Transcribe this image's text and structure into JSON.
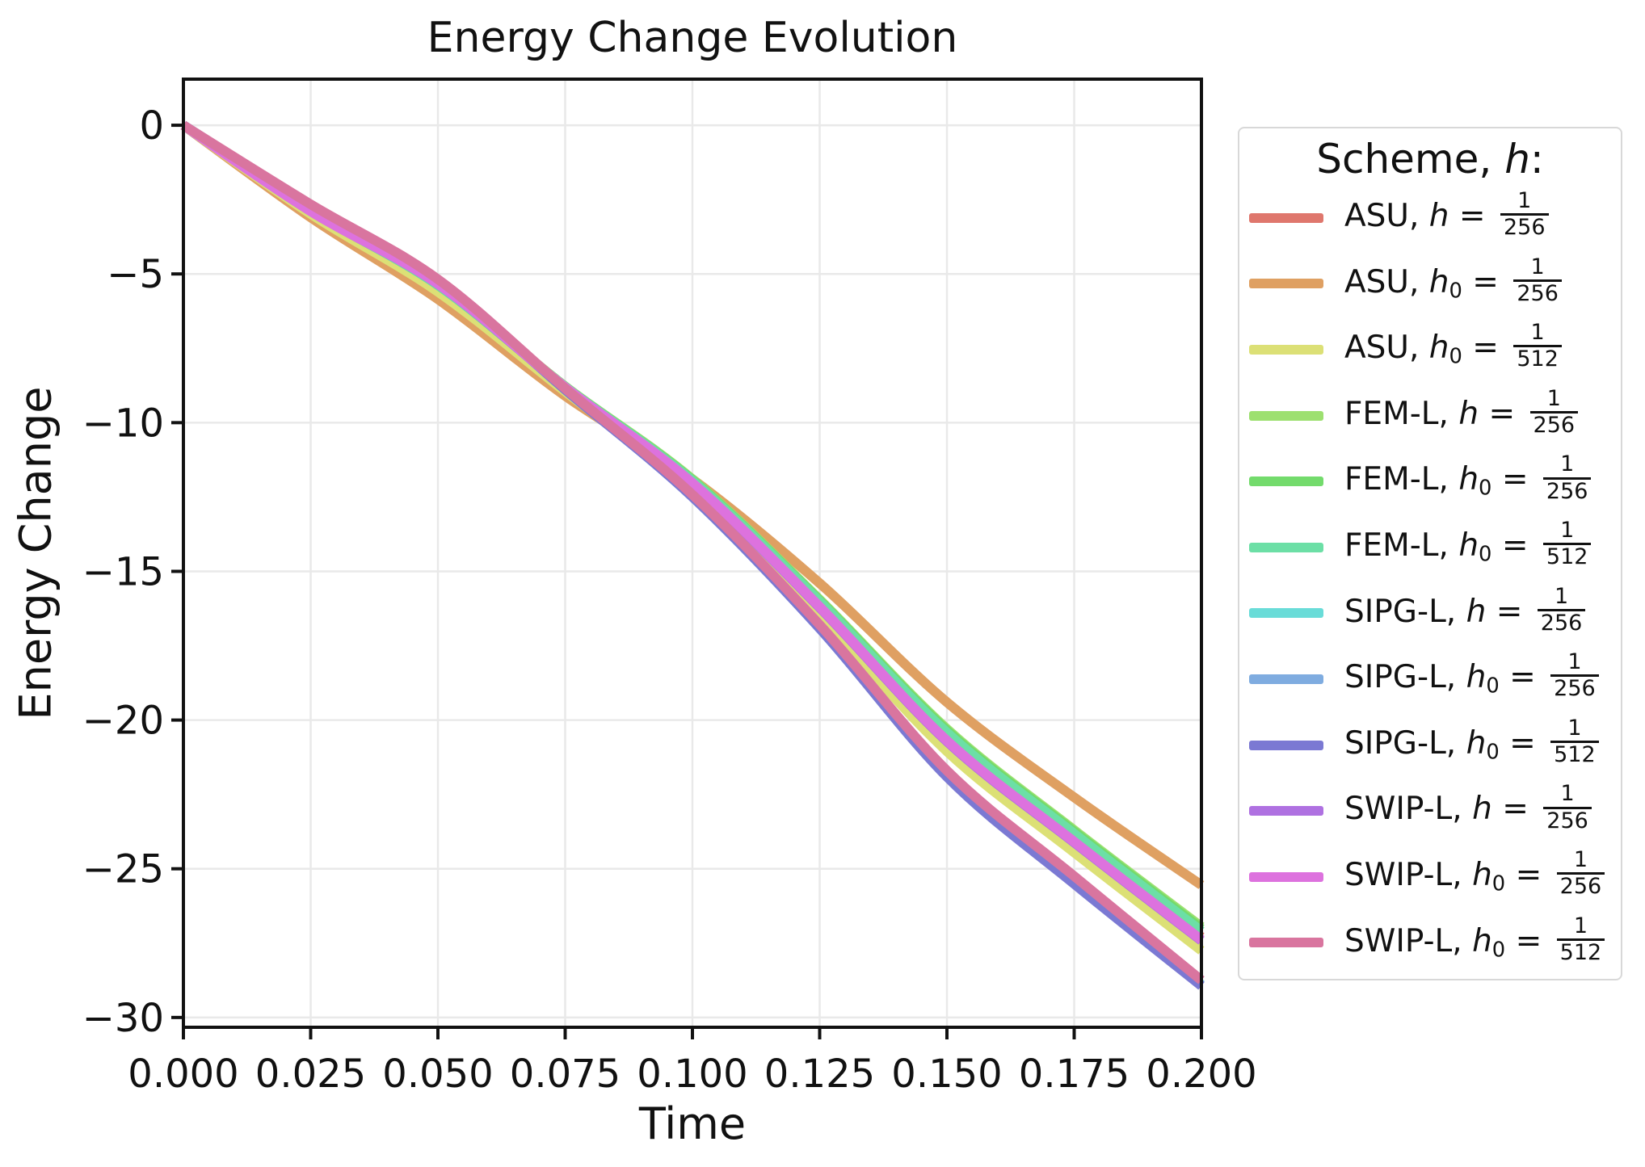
{
  "figure": {
    "title": "Energy Change Evolution",
    "xlabel": "Time",
    "ylabel": "Energy Change"
  },
  "legend": {
    "title_prefix": "Scheme, ",
    "title_symbol": "h",
    "title_suffix": ":",
    "separator": ", ",
    "equals": " = ",
    "entries": [
      {
        "scheme": "ASU",
        "param": "h",
        "sub": "",
        "num": "1",
        "den": "256",
        "color": "#df776d",
        "label": "ASU, h = 1/256"
      },
      {
        "scheme": "ASU",
        "param": "h",
        "sub": "0",
        "num": "1",
        "den": "256",
        "color": "#dfa062",
        "label": "ASU, h0 = 1/256"
      },
      {
        "scheme": "ASU",
        "param": "h",
        "sub": "0",
        "num": "1",
        "den": "512",
        "color": "#dce076",
        "label": "ASU, h0 = 1/512"
      },
      {
        "scheme": "FEM-L",
        "param": "h",
        "sub": "",
        "num": "1",
        "den": "256",
        "color": "#9de070",
        "label": "FEM-L, h = 1/256"
      },
      {
        "scheme": "FEM-L",
        "param": "h",
        "sub": "0",
        "num": "1",
        "den": "256",
        "color": "#73db6c",
        "label": "FEM-L, h0 = 1/256"
      },
      {
        "scheme": "FEM-L",
        "param": "h",
        "sub": "0",
        "num": "1",
        "den": "512",
        "color": "#6cdfa6",
        "label": "FEM-L, h0 = 1/512"
      },
      {
        "scheme": "SIPG-L",
        "param": "h",
        "sub": "",
        "num": "1",
        "den": "256",
        "color": "#69dcd8",
        "label": "SIPG-L, h = 1/256"
      },
      {
        "scheme": "SIPG-L",
        "param": "h",
        "sub": "0",
        "num": "1",
        "den": "256",
        "color": "#7face0",
        "label": "SIPG-L, h0 = 1/256"
      },
      {
        "scheme": "SIPG-L",
        "param": "h",
        "sub": "0",
        "num": "1",
        "den": "512",
        "color": "#7b79d3",
        "label": "SIPG-L, h0 = 1/512"
      },
      {
        "scheme": "SWIP-L",
        "param": "h",
        "sub": "",
        "num": "1",
        "den": "256",
        "color": "#af71e1",
        "label": "SWIP-L, h = 1/256"
      },
      {
        "scheme": "SWIP-L",
        "param": "h",
        "sub": "0",
        "num": "1",
        "den": "256",
        "color": "#dd72de",
        "label": "SWIP-L, h0 = 1/256"
      },
      {
        "scheme": "SWIP-L",
        "param": "h",
        "sub": "0",
        "num": "1",
        "den": "512",
        "color": "#d9759f",
        "label": "SWIP-L, h0 = 1/512"
      }
    ]
  },
  "chart_data": {
    "type": "line",
    "title": "Energy Change Evolution",
    "xlabel": "Time",
    "ylabel": "Energy Change",
    "xlim": [
      0,
      0.2
    ],
    "ylim": [
      -30.33,
      1.55
    ],
    "xticks": [
      0,
      0.025,
      0.05,
      0.075,
      0.1,
      0.125,
      0.15,
      0.175,
      0.2
    ],
    "xtick_labels": [
      "0.000",
      "0.025",
      "0.050",
      "0.075",
      "0.100",
      "0.125",
      "0.150",
      "0.175",
      "0.200"
    ],
    "yticks": [
      0,
      -5,
      -10,
      -15,
      -20,
      -25,
      -30
    ],
    "ytick_labels": [
      "0",
      "−5",
      "−10",
      "−15",
      "−20",
      "−25",
      "−30"
    ],
    "grid": true,
    "grid_color": "#e9e9e9",
    "spine_color": "#111111",
    "line_width": 12,
    "legend_position": "right of plot",
    "legend_title": "Scheme, h:",
    "x": [
      0,
      0.025,
      0.05,
      0.075,
      0.1,
      0.125,
      0.15,
      0.175,
      0.2
    ],
    "series": [
      {
        "name": "ASU, h = 1/256",
        "color": "#df776d",
        "values": [
          0,
          -2.86,
          -5.36,
          -8.8,
          -12.0,
          -16.1,
          -20.55,
          -23.95,
          -27.3
        ]
      },
      {
        "name": "ASU, h0 = 1/256",
        "color": "#dfa062",
        "values": [
          0,
          -3.1,
          -5.85,
          -9.1,
          -11.9,
          -15.4,
          -19.4,
          -22.6,
          -25.55
        ]
      },
      {
        "name": "ASU, h0 = 1/512",
        "color": "#dce076",
        "values": [
          0,
          -2.98,
          -5.6,
          -8.95,
          -12.25,
          -16.5,
          -21.05,
          -24.45,
          -27.75
        ]
      },
      {
        "name": "FEM-L, h = 1/256",
        "color": "#9de070",
        "values": [
          0,
          -2.86,
          -5.37,
          -8.78,
          -11.9,
          -15.95,
          -20.3,
          -23.7,
          -26.95
        ]
      },
      {
        "name": "FEM-L, h0 = 1/256",
        "color": "#73db6c",
        "values": [
          0,
          -2.86,
          -5.37,
          -8.79,
          -11.93,
          -15.98,
          -20.35,
          -23.75,
          -27.02
        ]
      },
      {
        "name": "FEM-L, h0 = 1/512",
        "color": "#6cdfa6",
        "values": [
          0,
          -2.87,
          -5.38,
          -8.8,
          -11.96,
          -16.02,
          -20.42,
          -23.82,
          -27.1
        ]
      },
      {
        "name": "SIPG-L, h = 1/256",
        "color": "#69dcd8",
        "values": [
          0,
          -2.7,
          -5.22,
          -8.88,
          -12.48,
          -16.9,
          -21.88,
          -25.48,
          -28.9
        ]
      },
      {
        "name": "SIPG-L, h0 = 1/256",
        "color": "#7face0",
        "values": [
          0,
          -2.7,
          -5.22,
          -8.88,
          -12.49,
          -16.91,
          -21.89,
          -25.49,
          -28.92
        ]
      },
      {
        "name": "SIPG-L, h0 = 1/512",
        "color": "#7b79d3",
        "values": [
          0,
          -2.71,
          -5.23,
          -8.89,
          -12.5,
          -16.92,
          -21.91,
          -25.51,
          -28.94
        ]
      },
      {
        "name": "SWIP-L, h = 1/256",
        "color": "#af71e1",
        "values": [
          0,
          -2.89,
          -5.34,
          -8.83,
          -12.06,
          -16.22,
          -20.72,
          -24.12,
          -27.42
        ]
      },
      {
        "name": "SWIP-L, h0 = 1/256",
        "color": "#dd72de",
        "values": [
          0,
          -2.89,
          -5.33,
          -8.81,
          -12.03,
          -16.19,
          -20.69,
          -24.09,
          -27.39
        ]
      },
      {
        "name": "SWIP-L, h0 = 1/512",
        "color": "#d9759f",
        "values": [
          0,
          -2.66,
          -5.18,
          -8.85,
          -12.42,
          -16.8,
          -21.7,
          -25.25,
          -28.75
        ]
      }
    ]
  }
}
